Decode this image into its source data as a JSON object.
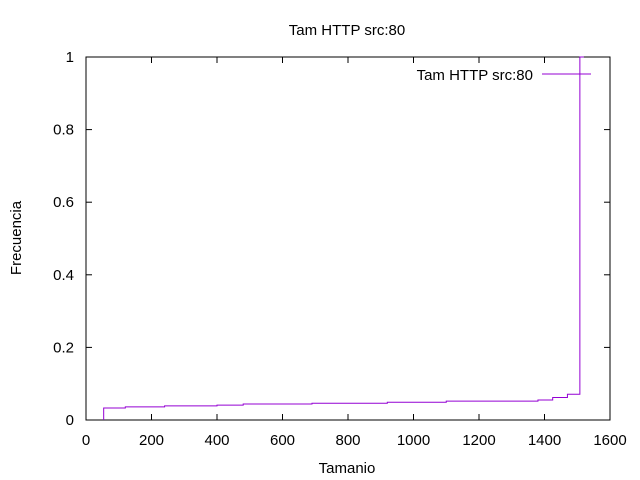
{
  "chart_data": {
    "type": "line",
    "title": "Tam HTTP src:80",
    "xlabel": "Tamanio",
    "ylabel": "Frecuencia",
    "xlim": [
      0,
      1600
    ],
    "ylim": [
      0,
      1
    ],
    "xticks": [
      0,
      200,
      400,
      600,
      800,
      1000,
      1200,
      1400,
      1600
    ],
    "yticks": [
      0,
      0.2,
      0.4,
      0.6,
      0.8,
      1
    ],
    "ytick_labels": [
      "0",
      "0.2",
      "0.4",
      "0.6",
      "0.8",
      "1"
    ],
    "grid": false,
    "legend_position": "top-right",
    "series": [
      {
        "name": "Tam HTTP src:80",
        "color": "#9400d3",
        "step": true,
        "x": [
          54,
          54,
          120,
          240,
          400,
          480,
          690,
          920,
          1100,
          1380,
          1425,
          1470,
          1508,
          1508
        ],
        "y": [
          0.0,
          0.033,
          0.036,
          0.039,
          0.041,
          0.044,
          0.046,
          0.049,
          0.052,
          0.055,
          0.062,
          0.071,
          0.087,
          1.0
        ]
      }
    ]
  }
}
